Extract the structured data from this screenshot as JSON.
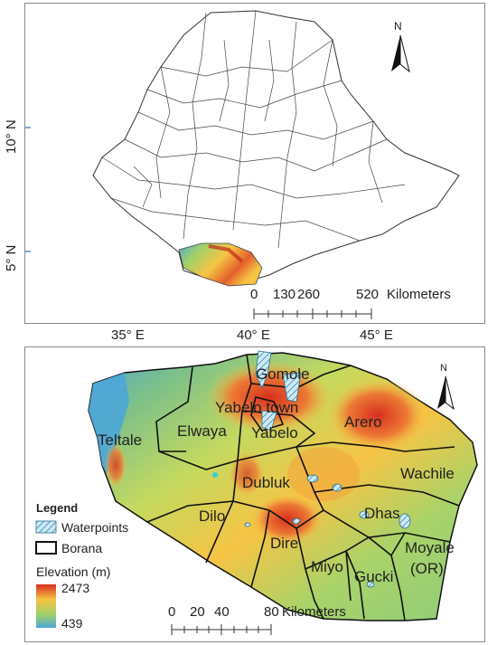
{
  "top_map": {
    "lat_ticks": [
      "10° N",
      "5° N"
    ],
    "lon_ticks": [
      "35° E",
      "40° E",
      "45° E"
    ],
    "north": "N",
    "scale": {
      "ticks": [
        "0",
        "130",
        "260",
        "520"
      ],
      "unit": "Kilometers"
    }
  },
  "bottom_map": {
    "north": "N",
    "districts": [
      "Gomole",
      "Yabelo town",
      "Yabelo",
      "Arero",
      "Teltale",
      "Elwaya",
      "Dubluk",
      "Wachile",
      "Dilo",
      "Dhas",
      "Dire",
      "Moyale",
      "(OR)",
      "Miyo",
      "Gucki"
    ],
    "legend": {
      "title": "Legend",
      "waterpoints": "Waterpoints",
      "borana": "Borana",
      "elevation_label": "Elevation (m)",
      "elev_max": "2473",
      "elev_min": "439"
    },
    "scale": {
      "ticks": [
        "0",
        "20",
        "40",
        "80"
      ],
      "unit": "Kilometers"
    }
  },
  "colors": {
    "elev_high": "#d7301f",
    "elev_mid": "#f6c445",
    "elev_low": "#9fd06a",
    "elev_lowest": "#4da6d8",
    "waterpoint": "#9fd3e6"
  }
}
